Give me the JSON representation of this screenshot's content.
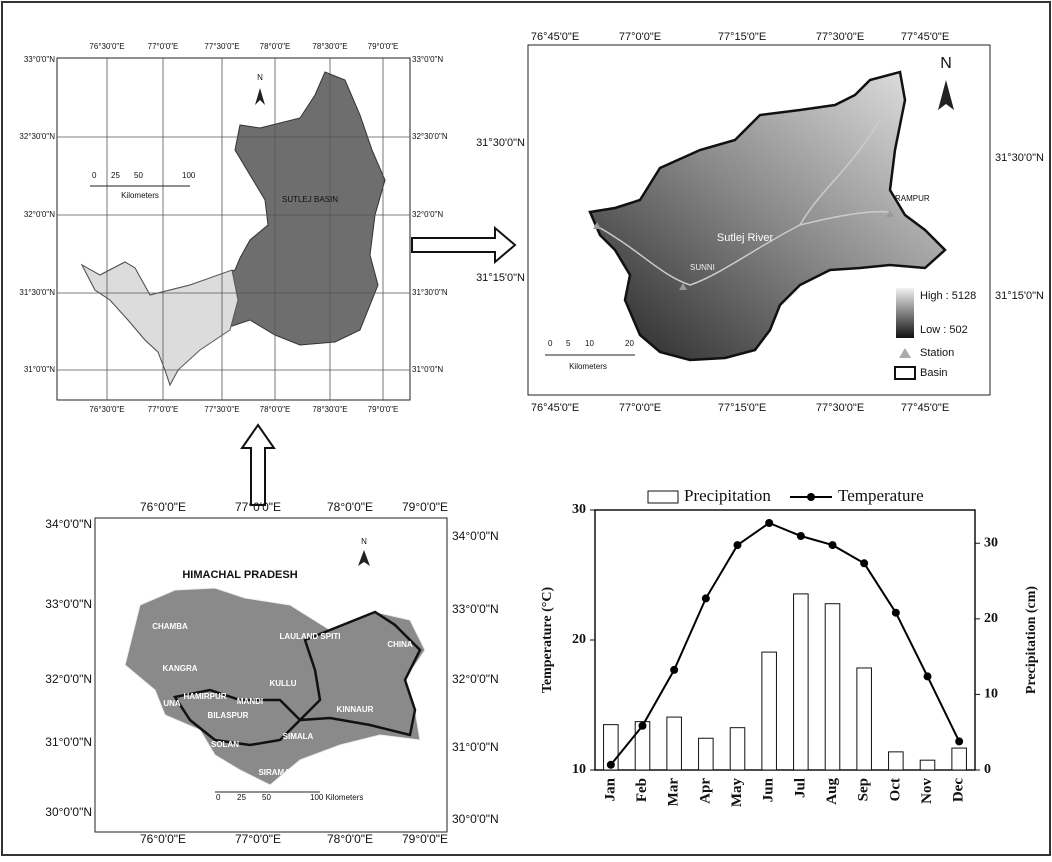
{
  "map_basin": {
    "x_labels": [
      "76°30'0\"E",
      "77°0'0\"E",
      "77°30'0\"E",
      "78°0'0\"E",
      "78°30'0\"E",
      "79°0'0\"E"
    ],
    "y_labels": [
      "33°0'0\"N",
      "32°30'0\"N",
      "32°0'0\"N",
      "31°30'0\"N",
      "31°0'0\"N"
    ],
    "north": "N",
    "scale": [
      "0",
      "25",
      "50",
      "100"
    ],
    "scale_unit": "Kilometers",
    "label": "SUTLEJ BASIN"
  },
  "map_dem": {
    "x_labels": [
      "76°45'0\"E",
      "77°0'0\"E",
      "77°15'0\"E",
      "77°30'0\"E",
      "77°45'0\"E"
    ],
    "y_labels": [
      "31°30'0\"N",
      "31°15'0\"N"
    ],
    "north": "N",
    "places": [
      "RAMPUR",
      "Sutlej River",
      "SUNNI"
    ],
    "scale": [
      "0",
      "5",
      "10",
      "20"
    ],
    "scale_unit": "Kilometers",
    "legend": {
      "high": "High : 5128",
      "low": "Low : 502",
      "station": "Station",
      "basin": "Basin"
    }
  },
  "map_state": {
    "x_labels": [
      "76°0'0\"E",
      "77°0'0\"E",
      "78°0'0\"E",
      "79°0'0\"E"
    ],
    "y_labels": [
      "34°0'0\"N",
      "33°0'0\"N",
      "32°0'0\"N",
      "31°0'0\"N",
      "30°0'0\"N"
    ],
    "north": "N",
    "title": "HIMACHAL PRADESH",
    "districts": [
      "CHAMBA",
      "LAULAND SPITI",
      "KANGRA",
      "KULLU",
      "CHINA",
      "HAMIRPUR",
      "UNA",
      "MANDI",
      "BILASPUR",
      "KINNAUR",
      "SOLAN",
      "SIMALA",
      "SIRAMAUR"
    ],
    "scale": [
      "0",
      "25",
      "50",
      "100 Kilometers"
    ]
  },
  "chart_data": {
    "type": "bar_line",
    "categories": [
      "Jan",
      "Feb",
      "Mar",
      "Apr",
      "May",
      "Jun",
      "Jul",
      "Aug",
      "Sep",
      "Oct",
      "Nov",
      "Dec"
    ],
    "series": [
      {
        "name": "Precipitation",
        "type": "bar",
        "axis": "y2",
        "color": "#ffffff",
        "values": [
          6.0,
          6.4,
          7.0,
          4.2,
          5.6,
          15.6,
          23.3,
          22.0,
          13.5,
          2.4,
          1.3,
          2.9
        ]
      },
      {
        "name": "Temperature",
        "type": "line",
        "axis": "y",
        "color": "#000000",
        "values": [
          10.4,
          13.4,
          17.7,
          23.2,
          27.3,
          29.0,
          28.0,
          27.3,
          25.9,
          22.1,
          17.2,
          12.2
        ]
      }
    ],
    "y_label": "Temperature (°C)",
    "y2_label": "Precipitation (cm)",
    "ylim": [
      10,
      30
    ],
    "yticks": [
      10,
      20,
      30
    ],
    "y2lim": [
      0,
      34.4
    ],
    "y2ticks": [
      0,
      10,
      20,
      30
    ]
  }
}
